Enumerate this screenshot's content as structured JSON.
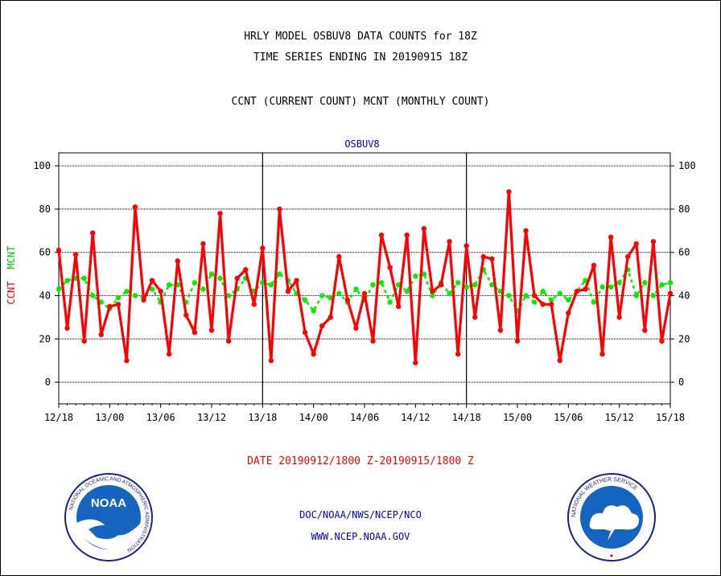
{
  "header": {
    "title_line1": "HRLY MODEL OSBUV8 DATA COUNTS for 18Z",
    "title_line2": "TIME SERIES ENDING IN 20190915 18Z",
    "subtitle": "CCNT (CURRENT COUNT) MCNT (MONTHLY COUNT)"
  },
  "date_range": "DATE 20190912/1800 Z-20190915/1800 Z",
  "footer": {
    "org": "DOC/NOAA/NWS/NCEP/NCO",
    "url": "WWW.NCEP.NOAA.GOV"
  },
  "logos": {
    "noaa_text": "NOAA",
    "noaa_ring": "NATIONAL OCEANIC AND ATMOSPHERIC ADMINISTRATION",
    "noaa_bottom": "U.S. DEPARTMENT OF COMMERCE",
    "nws_ring": "NATIONAL WEATHER SERVICE"
  },
  "colors": {
    "ccnt": "#ff0000",
    "mcnt": "#00ee00",
    "label_blue": "#0000cc",
    "axis": "#000000"
  },
  "chart_data": {
    "type": "line",
    "title": "OSBUV8",
    "ylabel_ccnt": "CCNT",
    "ylabel_mcnt": "MCNT",
    "ylim": [
      -10,
      106
    ],
    "yticks": [
      0,
      20,
      40,
      60,
      80,
      100
    ],
    "grid": true,
    "x_range_hours": [
      0,
      72
    ],
    "x_tick_labels": [
      "12/18",
      "13/00",
      "13/06",
      "13/12",
      "13/18",
      "14/00",
      "14/06",
      "14/12",
      "14/18",
      "15/00",
      "15/06",
      "15/12",
      "15/18"
    ],
    "day_separators_hours": [
      24,
      48
    ],
    "series": [
      {
        "name": "CCNT",
        "values": [
          61,
          25,
          59,
          19,
          69,
          22,
          35,
          36,
          10,
          81,
          38,
          47,
          42,
          13,
          56,
          31,
          23,
          64,
          24,
          78,
          19,
          48,
          52,
          36,
          62,
          10,
          80,
          42,
          47,
          23,
          13,
          26,
          30,
          58,
          38,
          25,
          41,
          19,
          68,
          53,
          35,
          68,
          9,
          71,
          42,
          45,
          65,
          13,
          63,
          30,
          58,
          57,
          24,
          88,
          19,
          70,
          40,
          36,
          36,
          10,
          32,
          42,
          43,
          54,
          13,
          67,
          30,
          58,
          64,
          24,
          65,
          19,
          41
        ]
      },
      {
        "name": "MCNT",
        "values": [
          43,
          47,
          48,
          48,
          40,
          37,
          34,
          39,
          42,
          40,
          39,
          43,
          37,
          45,
          45,
          37,
          46,
          43,
          50,
          48,
          40,
          43,
          48,
          42,
          46,
          45,
          50,
          47,
          41,
          38,
          33,
          40,
          39,
          41,
          37,
          43,
          38,
          45,
          46,
          37,
          45,
          42,
          49,
          50,
          40,
          46,
          41,
          46,
          44,
          45,
          52,
          45,
          42,
          40,
          33,
          40,
          37,
          42,
          38,
          41,
          38,
          42,
          47,
          37,
          44,
          44,
          46,
          52,
          40,
          46,
          40,
          45,
          46
        ]
      }
    ]
  }
}
